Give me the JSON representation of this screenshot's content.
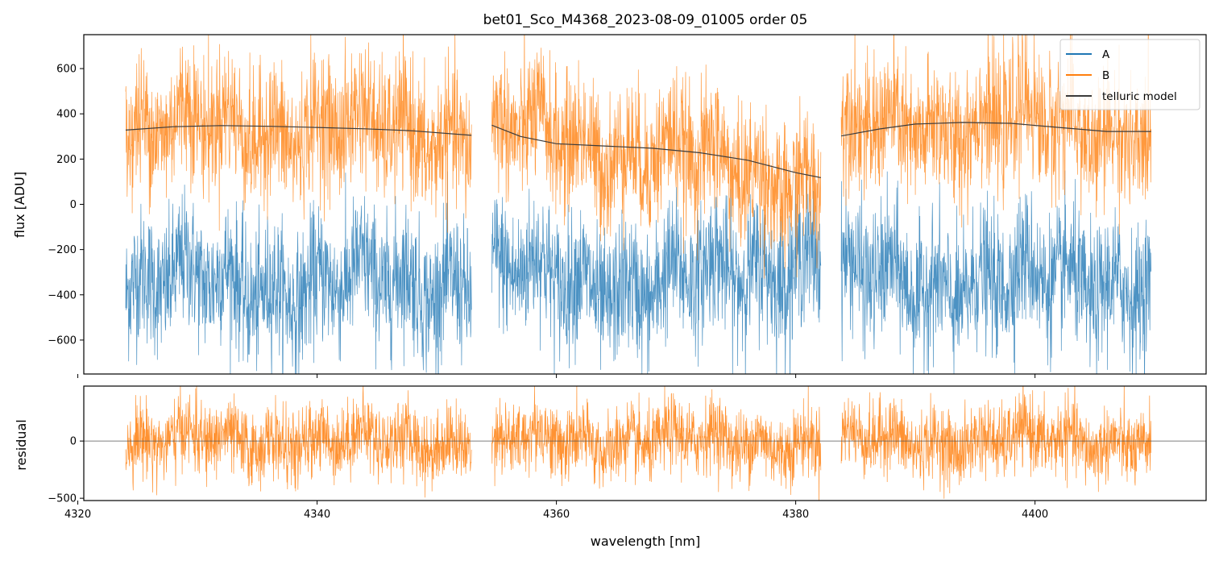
{
  "chart_data": [
    {
      "type": "line",
      "panel": "top",
      "title": "bet01_Sco_M4368_2023-08-09_01005  order 05",
      "xlabel": "",
      "ylabel": "flux [ADU]",
      "xlim": [
        4320.5,
        4414.3
      ],
      "ylim": [
        -750,
        750
      ],
      "yticks": [
        -600,
        -400,
        -200,
        0,
        200,
        400,
        600
      ],
      "ytick_labels": [
        "−600",
        "−400",
        "−200",
        "0",
        "200",
        "400",
        "600"
      ],
      "xticks": [
        4320,
        4340,
        4360,
        4380,
        4400
      ],
      "segments": [
        [
          4324.0,
          4352.9
        ],
        [
          4354.6,
          4382.1
        ],
        [
          4383.8,
          4409.7
        ]
      ],
      "series": [
        {
          "name": "A",
          "color": "#1f77b4",
          "center": [
            [
              4324,
              -340
            ],
            [
              4340,
              -360
            ],
            [
              4352.9,
              -330
            ],
            [
              4354.6,
              -300
            ],
            [
              4368,
              -370
            ],
            [
              4382.1,
              -220
            ],
            [
              4383.8,
              -330
            ],
            [
              4395,
              -350
            ],
            [
              4409.7,
              -330
            ]
          ],
          "scatter": 150
        },
        {
          "name": "B",
          "color": "#ff7f0e",
          "center": [
            [
              4324,
              330
            ],
            [
              4332,
              350
            ],
            [
              4352.9,
              310
            ],
            [
              4354.6,
              330
            ],
            [
              4368,
              230
            ],
            [
              4382.1,
              90
            ],
            [
              4383.8,
              300
            ],
            [
              4394,
              370
            ],
            [
              4409.7,
              320
            ]
          ],
          "scatter": 150
        },
        {
          "name": "telluric model",
          "color": "#3b3b3b",
          "points": [
            [
              4324,
              328
            ],
            [
              4328,
              343
            ],
            [
              4332,
              348
            ],
            [
              4336,
              345
            ],
            [
              4340,
              340
            ],
            [
              4344,
              334
            ],
            [
              4348,
              325
            ],
            [
              4352.9,
              305
            ],
            [
              4354.6,
              350
            ],
            [
              4357,
              300
            ],
            [
              4360,
              268
            ],
            [
              4364,
              258
            ],
            [
              4368,
              248
            ],
            [
              4372,
              228
            ],
            [
              4376,
              195
            ],
            [
              4380,
              140
            ],
            [
              4382.1,
              118
            ],
            [
              4383.8,
              302
            ],
            [
              4387,
              333
            ],
            [
              4390,
              355
            ],
            [
              4394,
              362
            ],
            [
              4398,
              358
            ],
            [
              4402,
              340
            ],
            [
              4406,
              322
            ],
            [
              4409.7,
              322
            ]
          ]
        }
      ],
      "legend": {
        "location": "top-right",
        "entries": [
          "A",
          "B",
          "telluric model"
        ]
      }
    },
    {
      "type": "line",
      "panel": "bottom",
      "xlabel": "wavelength [nm]",
      "ylabel": "residual",
      "xlim": [
        4320.5,
        4414.3
      ],
      "ylim": [
        -520,
        480
      ],
      "yticks": [
        -500,
        0
      ],
      "ytick_labels": [
        "−500",
        "0"
      ],
      "xticks": [
        4320,
        4340,
        4360,
        4380,
        4400
      ],
      "xtick_labels": [
        "4320",
        "4340",
        "4360",
        "4380",
        "4400"
      ],
      "segments": [
        [
          4324.0,
          4352.9
        ],
        [
          4354.6,
          4382.1
        ],
        [
          4383.8,
          4409.7
        ]
      ],
      "series": [
        {
          "name": "residual",
          "color": "#ff7f0e",
          "center": 0,
          "scatter": 160
        },
        {
          "name": "zero line",
          "color": "#555555",
          "value": 0
        }
      ]
    }
  ]
}
